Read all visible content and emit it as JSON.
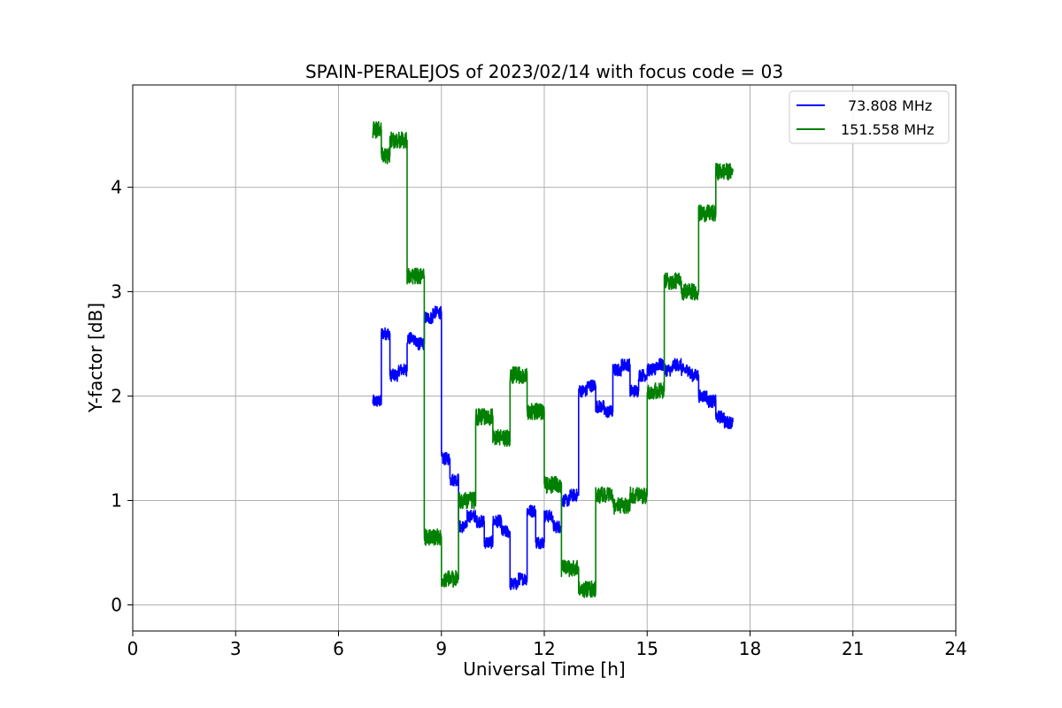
{
  "chart_data": {
    "type": "line",
    "title": "SPAIN-PERALEJOS of 2023/02/14 with focus code = 03",
    "xlabel": "Universal Time [h]",
    "ylabel": "Y-factor [dB]",
    "xlim": [
      0,
      24
    ],
    "ylim": [
      -0.25,
      4.98
    ],
    "xticks": [
      0,
      3,
      6,
      9,
      12,
      15,
      18,
      21,
      24
    ],
    "yticks": [
      0,
      1,
      2,
      3,
      4
    ],
    "grid": true,
    "legend_position": "top-right",
    "series": [
      {
        "name": "73.808 MHz",
        "color": "#0000ff",
        "x": [
          7.0,
          7.25,
          7.25,
          7.5,
          7.5,
          7.75,
          7.75,
          8.0,
          8.0,
          8.25,
          8.25,
          8.5,
          8.5,
          8.75,
          8.75,
          9.0,
          9.0,
          9.25,
          9.25,
          9.5,
          9.5,
          9.75,
          9.75,
          10.0,
          10.0,
          10.25,
          10.25,
          10.5,
          10.5,
          10.75,
          10.75,
          11.0,
          11.0,
          11.25,
          11.25,
          11.5,
          11.5,
          11.75,
          11.75,
          12.0,
          12.0,
          12.25,
          12.25,
          12.5,
          12.5,
          12.75,
          12.75,
          13.0,
          13.0,
          13.25,
          13.25,
          13.5,
          13.5,
          13.75,
          13.75,
          14.0,
          14.0,
          14.25,
          14.25,
          14.5,
          14.5,
          14.75,
          14.75,
          15.0,
          15.0,
          15.25,
          15.25,
          15.5,
          15.5,
          15.75,
          15.75,
          16.0,
          16.0,
          16.25,
          16.25,
          16.5,
          16.5,
          16.75,
          16.75,
          17.0,
          17.0,
          17.25,
          17.25,
          17.5
        ],
        "y": [
          1.95,
          1.95,
          2.6,
          2.6,
          2.2,
          2.2,
          2.25,
          2.25,
          2.55,
          2.55,
          2.5,
          2.5,
          2.75,
          2.75,
          2.8,
          2.8,
          1.4,
          1.4,
          1.2,
          1.2,
          0.75,
          0.75,
          0.85,
          0.85,
          0.8,
          0.8,
          0.6,
          0.6,
          0.8,
          0.8,
          0.7,
          0.7,
          0.2,
          0.2,
          0.25,
          0.25,
          0.9,
          0.9,
          0.6,
          0.6,
          0.85,
          0.85,
          0.75,
          0.75,
          1.0,
          1.0,
          1.05,
          1.05,
          2.05,
          2.05,
          2.1,
          2.1,
          1.9,
          1.9,
          1.85,
          1.85,
          2.25,
          2.25,
          2.3,
          2.3,
          2.05,
          2.05,
          2.2,
          2.2,
          2.25,
          2.25,
          2.3,
          2.3,
          2.25,
          2.25,
          2.3,
          2.3,
          2.25,
          2.25,
          2.2,
          2.2,
          2.0,
          2.0,
          1.95,
          1.95,
          1.8,
          1.8,
          1.75,
          1.75
        ],
        "noise": 0.06
      },
      {
        "name": "151.558 MHz",
        "color": "#008000",
        "x": [
          7.0,
          7.25,
          7.25,
          7.5,
          7.5,
          8.0,
          8.0,
          8.5,
          8.5,
          9.0,
          9.0,
          9.5,
          9.5,
          10.0,
          10.0,
          10.5,
          10.5,
          11.0,
          11.0,
          11.5,
          11.5,
          12.0,
          12.0,
          12.5,
          12.5,
          13.0,
          13.0,
          13.5,
          13.5,
          14.0,
          14.0,
          14.5,
          14.5,
          15.0,
          15.0,
          15.5,
          15.5,
          16.0,
          16.0,
          16.5,
          16.5,
          17.0,
          17.0,
          17.5
        ],
        "y": [
          4.55,
          4.55,
          4.3,
          4.3,
          4.45,
          4.45,
          3.15,
          3.15,
          0.65,
          0.65,
          0.25,
          0.25,
          1.0,
          1.0,
          1.8,
          1.8,
          1.6,
          1.6,
          2.2,
          2.2,
          1.85,
          1.85,
          1.15,
          1.15,
          0.35,
          0.35,
          0.15,
          0.15,
          1.05,
          1.05,
          0.95,
          0.95,
          1.05,
          1.05,
          2.05,
          2.05,
          3.1,
          3.1,
          3.0,
          3.0,
          3.75,
          3.75,
          4.15,
          4.15
        ],
        "noise": 0.08
      }
    ]
  }
}
